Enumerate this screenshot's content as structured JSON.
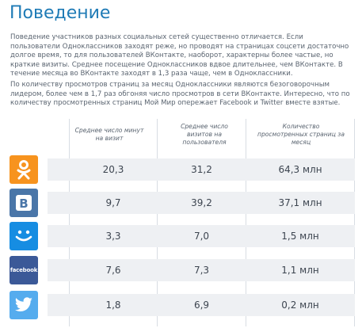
{
  "title": "Поведение",
  "paragraphs": [
    "Поведение участников разных социальных сетей существенно отличается. Если пользователи Одноклассников заходят реже, но проводят на страницах соцсети достаточно долгое время, то для пользователей ВКонтакте, наоборот, характерны более частые, но краткие визиты. Среднее посещение Одноклассников вдвое длительнее, чем ВКонтакте. В течение месяца во ВКонтакте заходят в 1,3 раза чаще, чем в Одноклассники.",
    "По количеству просмотров страниц за месяц Одноклассники являются безоговорочным лидером, более чем в 1,7 раз обгоняя число просмотров в сети ВКонтакте. Интересно, что по количеству просмотренных страниц Мой Мир опережает Facebook и Twitter вместе взятые."
  ],
  "table": {
    "headers": [
      "Среднее число минут на визит",
      "Среднее число визитов на пользователя",
      "Количество просмотренных страниц за месяц"
    ],
    "rows": [
      {
        "network_icon": "odnoklassniki-logo",
        "color": "#f7931e",
        "values": [
          "20,3",
          "31,2",
          "64,3 млн"
        ]
      },
      {
        "network_icon": "vkontakte-logo",
        "color": "#4a76a8",
        "values": [
          "9,7",
          "39,2",
          "37,1 млн"
        ]
      },
      {
        "network_icon": "moi-mir-logo",
        "color": "#168de2",
        "values": [
          "3,3",
          "7,0",
          "1,5 млн"
        ]
      },
      {
        "network_icon": "facebook-logo",
        "color": "#3b5998",
        "logo_text": "facebook",
        "values": [
          "7,6",
          "7,3",
          "1,1 млн"
        ]
      },
      {
        "network_icon": "twitter-logo",
        "color": "#55acee",
        "values": [
          "1,8",
          "6,9",
          "0,2 млн"
        ]
      }
    ]
  }
}
